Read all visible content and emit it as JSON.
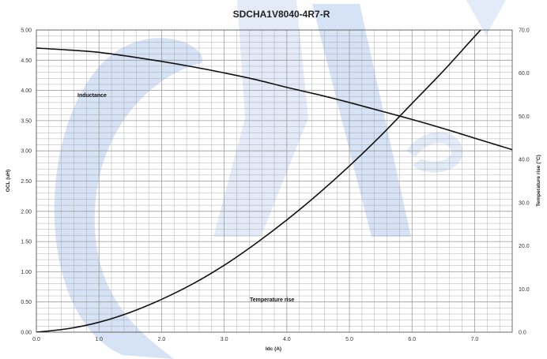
{
  "chart_data": {
    "type": "line",
    "title": "SDCHA1V8040-4R7-R",
    "xlabel": "Idc (A)",
    "ylabel_left": "OCL (uH)",
    "ylabel_right": "Temperature rise (°C)",
    "xlim": [
      0,
      7.6
    ],
    "ylim_left": [
      0,
      5
    ],
    "ylim_right": [
      0,
      70
    ],
    "x_ticks": [
      "0.0",
      "1.0",
      "2.0",
      "3.0",
      "4.0",
      "5.0",
      "6.0",
      "7.0"
    ],
    "y_left_ticks": [
      "0.00",
      "0.50",
      "1.00",
      "1.50",
      "2.00",
      "2.50",
      "3.00",
      "3.50",
      "4.00",
      "4.50",
      "5.00"
    ],
    "y_right_ticks": [
      "0.0",
      "10.0",
      "20.0",
      "30.0",
      "40.0",
      "50.0",
      "60.0",
      "70.0"
    ],
    "grid": true,
    "watermark_colors": [
      "#d6e2f5",
      "#e3ebf8"
    ],
    "line_color": "#111111",
    "grid_color": "#9a9a9a",
    "series": [
      {
        "axis": "left",
        "annotation": "Inductance",
        "x": [
          0,
          0.5,
          1.0,
          1.5,
          2.0,
          2.5,
          3.0,
          3.5,
          4.0,
          4.5,
          5.0,
          5.5,
          6.0,
          6.5,
          7.0,
          7.6
        ],
        "y": [
          4.7,
          4.67,
          4.63,
          4.56,
          4.48,
          4.39,
          4.29,
          4.18,
          4.05,
          3.93,
          3.8,
          3.66,
          3.52,
          3.37,
          3.21,
          3.02
        ]
      },
      {
        "axis": "right",
        "annotation": "Temperature rise",
        "x": [
          0,
          0.5,
          1.0,
          1.5,
          2.0,
          2.5,
          3.0,
          3.5,
          4.0,
          4.5,
          5.0,
          5.5,
          6.0,
          6.5,
          7.0,
          7.6
        ],
        "y": [
          0,
          0.8,
          2.3,
          4.6,
          7.6,
          11.2,
          15.5,
          20.5,
          26,
          32,
          38.5,
          45.5,
          53,
          60.5,
          68.5,
          78
        ]
      }
    ]
  }
}
